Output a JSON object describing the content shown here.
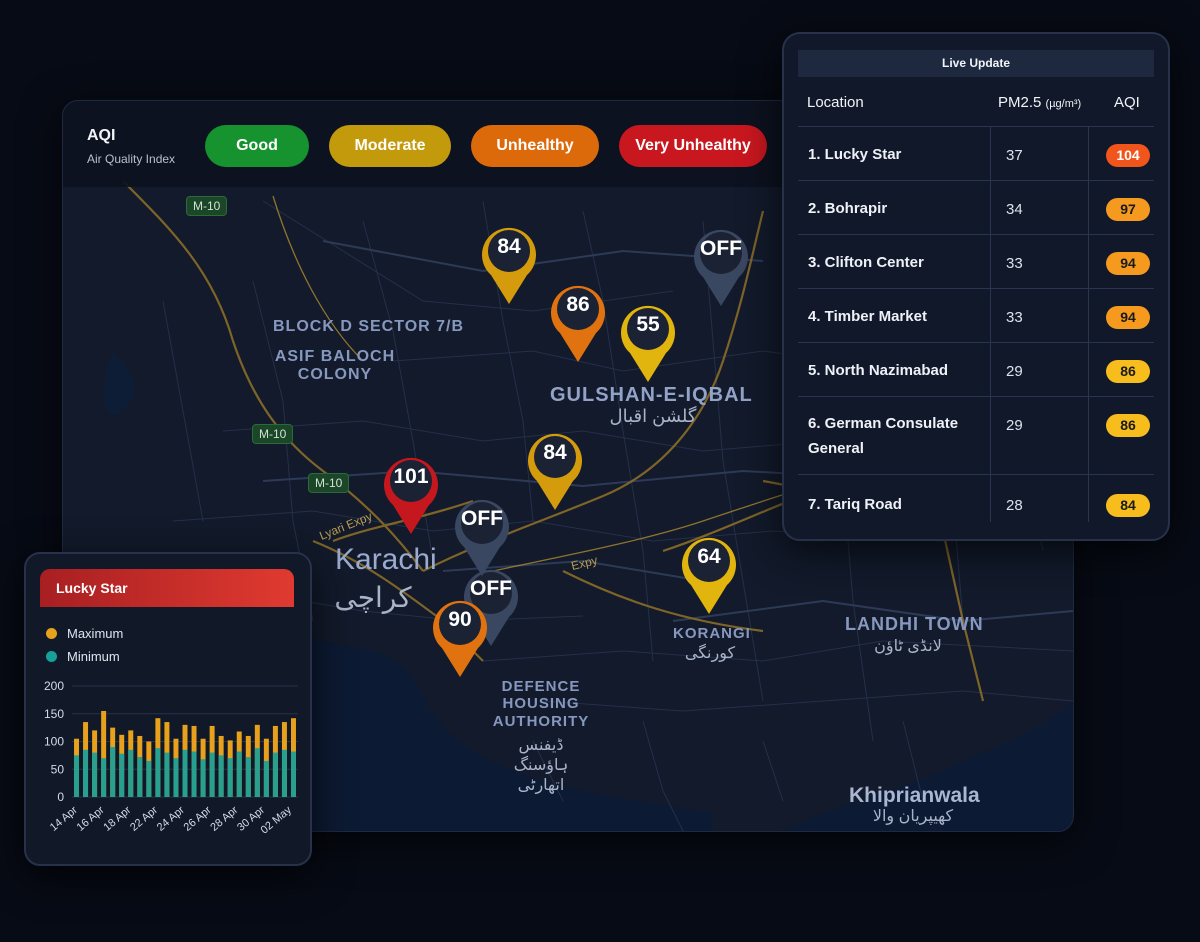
{
  "aqi_legend": {
    "title": "AQI",
    "subtitle": "Air Quality Index",
    "levels": [
      {
        "label": "Good",
        "color": "#16922f"
      },
      {
        "label": "Moderate",
        "color": "#c39a0c"
      },
      {
        "label": "Unhealthy",
        "color": "#dc6a0b"
      },
      {
        "label": "Very Unhealthy",
        "color": "#c9171f"
      }
    ]
  },
  "map": {
    "areas": {
      "block_d": "BLOCK D SECTOR 7/B",
      "asif_baloch_1": "ASIF BALOCH",
      "asif_baloch_2": "COLONY",
      "gulshan": "GULSHAN-E-IQBAL",
      "gulshan_urdu": "گلشن اقبال",
      "karachi": "Karachi",
      "karachi_urdu": "کراچی",
      "korangi": "KORANGI",
      "korangi_urdu": "کورنگی",
      "landhi": "LANDHI TOWN",
      "landhi_urdu": "لانڈی ٹاؤن",
      "dha_1": "DEFENCE",
      "dha_2": "HOUSING",
      "dha_3": "AUTHORITY",
      "dha_urdu_1": "ڈیفنس",
      "dha_urdu_2": "ہاؤسنگ",
      "dha_urdu_3": "اتھارٹی",
      "khiprianwala": "Khiprianwala",
      "khiprianwala_urdu": "کھیپریان والا"
    },
    "roads": {
      "m10": "M-10",
      "lyari": "Lyari Expy",
      "expy": "Expy"
    },
    "pins": [
      {
        "value": "84",
        "color": "#d49b0c"
      },
      {
        "value": "86",
        "color": "#e0720f"
      },
      {
        "value": "55",
        "color": "#e2b40e"
      },
      {
        "value": "OFF",
        "color": "#3a4760"
      },
      {
        "value": "84",
        "color": "#d49b0c"
      },
      {
        "value": "101",
        "color": "#c4171e"
      },
      {
        "value": "OFF",
        "color": "#3a4760"
      },
      {
        "value": "OFF",
        "color": "#3a4760"
      },
      {
        "value": "90",
        "color": "#e0720f"
      },
      {
        "value": "64",
        "color": "#e2b40e"
      }
    ]
  },
  "live_update": {
    "title": "Live Update",
    "columns": {
      "location": "Location",
      "pm25": "PM2.5",
      "pm25_unit": "(µg/m³)",
      "aqi": "AQI"
    },
    "rows": [
      {
        "location": "1. Lucky Star",
        "pm25": "37",
        "aqi": "104",
        "color": "#f1551b",
        "text_color": "#ffffff"
      },
      {
        "location": "2. Bohrapir",
        "pm25": "34",
        "aqi": "97",
        "color": "#f59a1f",
        "text_color": "#1a1a1a"
      },
      {
        "location": "3. Clifton Center",
        "pm25": "33",
        "aqi": "94",
        "color": "#f59a1f",
        "text_color": "#1a1a1a"
      },
      {
        "location": "4. Timber Market",
        "pm25": "33",
        "aqi": "94",
        "color": "#f59a1f",
        "text_color": "#1a1a1a"
      },
      {
        "location": "5. North Nazimabad",
        "pm25": "29",
        "aqi": "86",
        "color": "#f6bd1c",
        "text_color": "#1a1a1a"
      },
      {
        "location": "6. German Consulate General",
        "pm25": "29",
        "aqi": "86",
        "color": "#f6bd1c",
        "text_color": "#1a1a1a"
      },
      {
        "location": "7. Tariq Road",
        "pm25": "28",
        "aqi": "84",
        "color": "#f6bd1c",
        "text_color": "#1a1a1a"
      }
    ]
  },
  "lucky_star_chart": {
    "title": "Lucky Star",
    "legend": {
      "max": "Maximum",
      "min": "Minimum",
      "max_color": "#e7a11c",
      "min_color": "#17a09a"
    },
    "chart_data": {
      "type": "bar",
      "title": "Lucky Star",
      "ylim": [
        0,
        200
      ],
      "yticks": [
        0,
        50,
        100,
        150,
        200
      ],
      "xticks": [
        "14 Apr",
        "16 Apr",
        "18 Apr",
        "22 Apr",
        "24 Apr",
        "26 Apr",
        "28 Apr",
        "30 Apr",
        "02 May"
      ],
      "series": [
        {
          "name": "Maximum",
          "values": [
            105,
            135,
            120,
            155,
            125,
            112,
            120,
            110,
            100,
            142,
            135,
            105,
            130,
            128,
            105,
            128,
            110,
            102,
            118,
            110,
            130,
            105,
            128,
            135,
            142
          ]
        },
        {
          "name": "Minimum",
          "values": [
            75,
            85,
            80,
            70,
            90,
            78,
            85,
            72,
            65,
            88,
            80,
            70,
            85,
            82,
            68,
            80,
            75,
            70,
            82,
            72,
            88,
            65,
            80,
            85,
            82
          ]
        }
      ]
    }
  }
}
